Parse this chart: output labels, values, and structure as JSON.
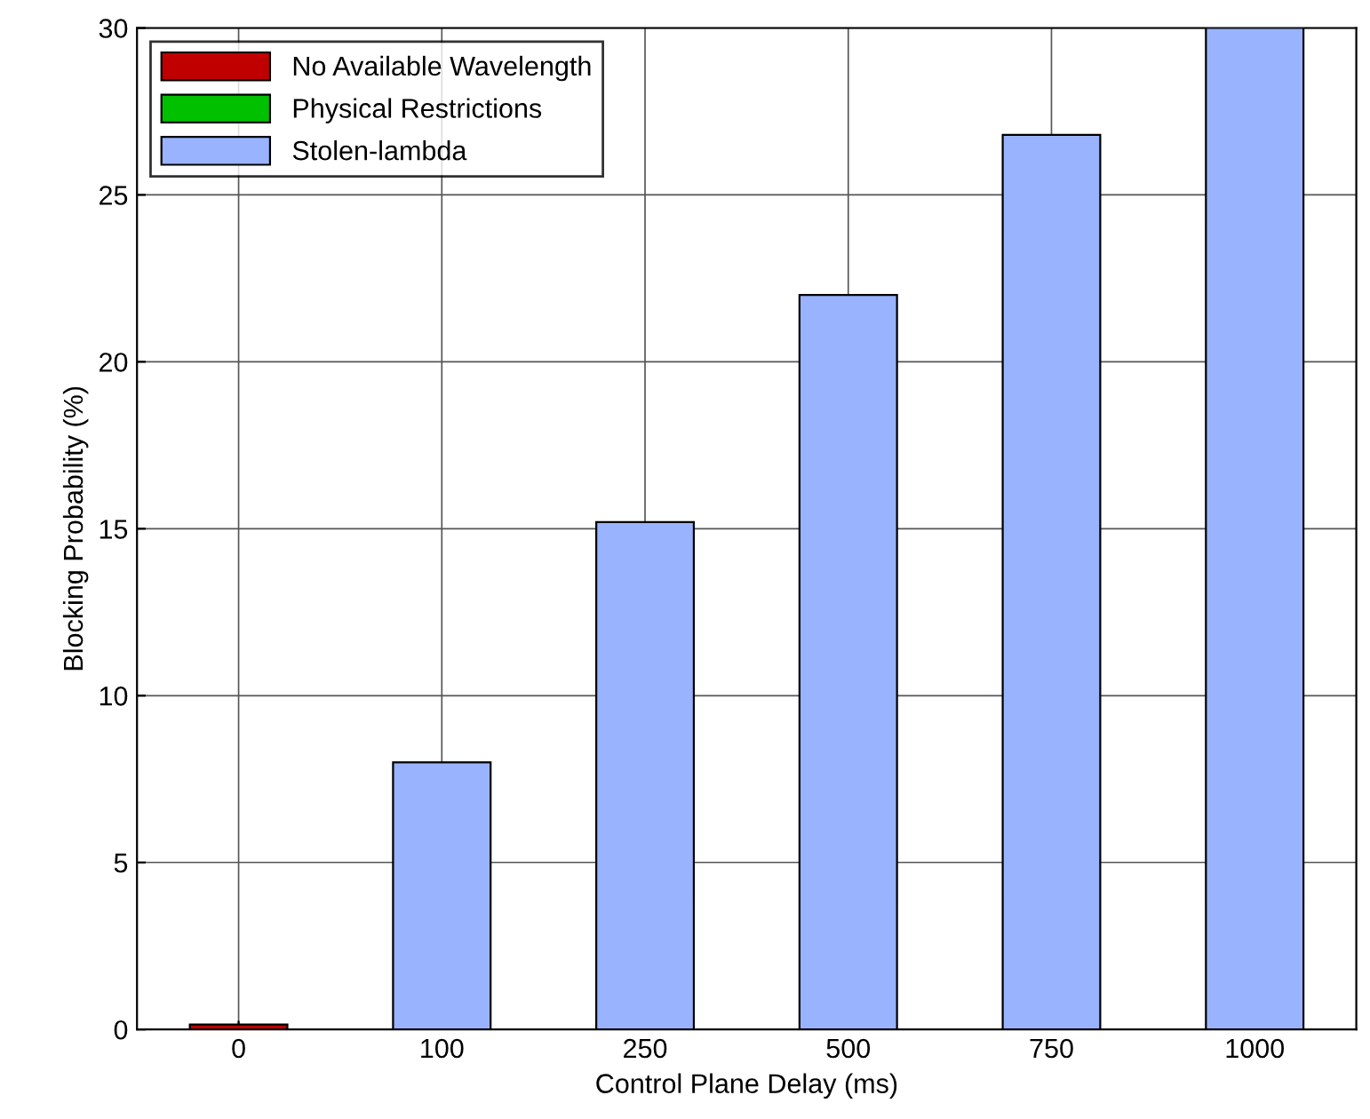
{
  "chart_data": {
    "type": "bar",
    "stacked": true,
    "xlabel": "Control Plane Delay (ms)",
    "ylabel": "Blocking Probability (%)",
    "categories": [
      "0",
      "100",
      "250",
      "500",
      "750",
      "1000"
    ],
    "series": [
      {
        "name": "No Available Wavelength",
        "color": "#c00000",
        "values": [
          0.15,
          0,
          0,
          0,
          0,
          0
        ]
      },
      {
        "name": "Physical Restrictions",
        "color": "#00c000",
        "values": [
          0,
          0,
          0,
          0,
          0,
          0
        ]
      },
      {
        "name": "Stolen-lambda",
        "color": "#99b3ff",
        "values": [
          0,
          8,
          15.2,
          22,
          26.8,
          30
        ]
      }
    ],
    "ylim": [
      0,
      30
    ],
    "yticks": [
      0,
      5,
      10,
      15,
      20,
      25,
      30
    ],
    "grid": true,
    "legend": "top left"
  }
}
